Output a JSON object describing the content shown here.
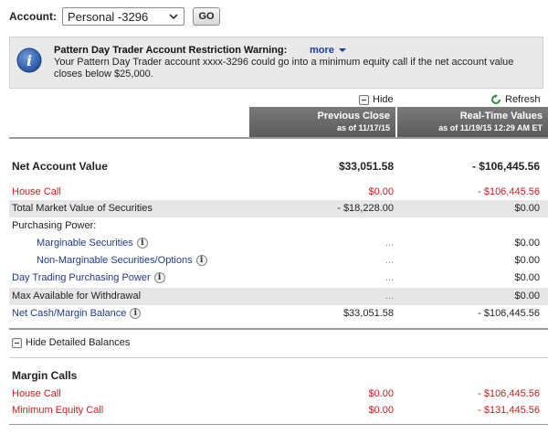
{
  "account": {
    "label": "Account:",
    "selected": "Personal -3296",
    "go_label": "GO"
  },
  "warning": {
    "title": "Pattern Day Trader Account Restriction Warning:",
    "more_label": "more",
    "body": "Your Pattern Day Trader account xxxx-3296 could go into a minimum equity call if the net account value closes below $25,000."
  },
  "toolbar": {
    "hide_label": "Hide",
    "refresh_label": "Refresh"
  },
  "columns": {
    "prev_title": "Previous Close",
    "prev_sub": "as of 11/17/15",
    "rt_title": "Real-Time Values",
    "rt_sub": "as of 11/19/15 12:29 AM ET"
  },
  "balances": {
    "net_account_value": {
      "label": "Net Account Value",
      "prev": "$33,051.58",
      "rt": "- $106,445.56"
    },
    "house_call": {
      "label": "House Call",
      "prev": "$0.00",
      "rt": "- $106,445.56"
    },
    "total_market_value": {
      "label": "Total Market Value of Securities",
      "prev": "- $18,228.00",
      "rt": "$0.00"
    },
    "purchasing_power": {
      "label": "Purchasing Power:"
    },
    "marginable": {
      "label": "Marginable Securities",
      "prev": "...",
      "rt": "$0.00"
    },
    "non_marginable": {
      "label": "Non-Marginable Securities/Options",
      "prev": "...",
      "rt": "$0.00"
    },
    "day_trading_pp": {
      "label": "Day Trading Purchasing Power",
      "prev": "...",
      "rt": "$0.00"
    },
    "max_withdrawal": {
      "label": "Max Available for Withdrawal",
      "prev": "...",
      "rt": "$0.00"
    },
    "net_cash_margin": {
      "label": "Net Cash/Margin Balance",
      "prev": "$33,051.58",
      "rt": "- $106,445.56"
    }
  },
  "hide_detailed_label": "Hide Detailed Balances",
  "margin_calls": {
    "title": "Margin Calls",
    "house_call": {
      "label": "House Call",
      "prev": "$0.00",
      "rt": "- $106,445.56"
    },
    "min_equity_call": {
      "label": "Minimum Equity Call",
      "prev": "$0.00",
      "rt": "- $131,445.56"
    }
  },
  "info_glyph": "i"
}
